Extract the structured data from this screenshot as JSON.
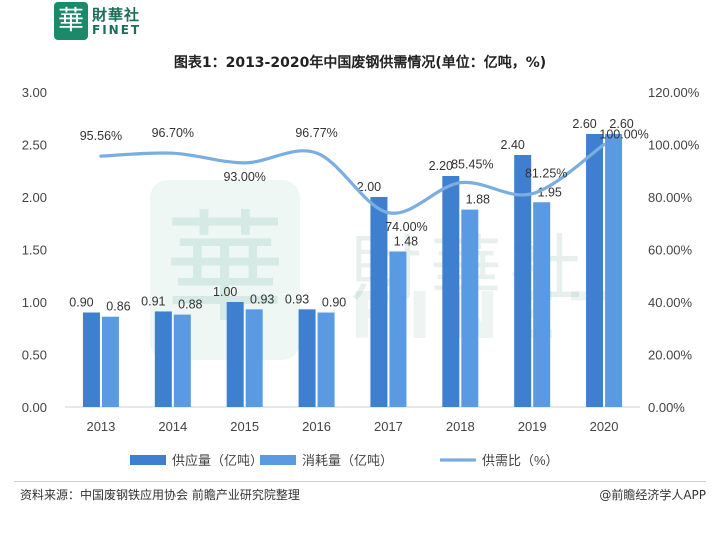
{
  "brand": {
    "seal_char": "華",
    "name_cn": "財華社",
    "name_en": "FINET"
  },
  "watermark": {
    "seal_char": "華",
    "name_cn": "財華社",
    "name_en": "FINET"
  },
  "chart_data": {
    "type": "bar",
    "title": "图表1：2013-2020年中国废钢供需情况(单位：亿吨，%)",
    "categories": [
      "2013",
      "2014",
      "2015",
      "2016",
      "2017",
      "2018",
      "2019",
      "2020"
    ],
    "series": [
      {
        "name": "供应量（亿吨）",
        "type": "bar",
        "axis": "left",
        "color": "#3f7fd0",
        "values": [
          0.9,
          0.91,
          1.0,
          0.93,
          2.0,
          2.2,
          2.4,
          2.6
        ],
        "labels": [
          "0.90",
          "0.91",
          "1.00",
          "0.93",
          "2.00",
          "2.20",
          "2.40",
          "2.60"
        ]
      },
      {
        "name": "消耗量（亿吨）",
        "type": "bar",
        "axis": "left",
        "color": "#5a9ae3",
        "values": [
          0.86,
          0.88,
          0.93,
          0.9,
          1.48,
          1.88,
          1.95,
          2.6
        ],
        "labels": [
          "0.86",
          "0.88",
          "0.93",
          "0.90",
          "1.48",
          "1.88",
          "1.95",
          "2.60"
        ]
      },
      {
        "name": "供需比（%）",
        "type": "line",
        "axis": "right",
        "color": "#7aaee0",
        "values": [
          95.56,
          96.7,
          93.0,
          96.77,
          74.0,
          85.45,
          81.25,
          100.0
        ],
        "labels": [
          "95.56%",
          "96.70%",
          "93.00%",
          "96.77%",
          "74.00%",
          "85.45%",
          "81.25%",
          "100.00%"
        ]
      }
    ],
    "y_left": {
      "min": 0,
      "max": 3,
      "ticks": [
        "0.00",
        "0.50",
        "1.00",
        "1.50",
        "2.00",
        "2.50",
        "3.00"
      ]
    },
    "y_right": {
      "min": 0,
      "max": 120,
      "ticks": [
        "0.00%",
        "20.00%",
        "40.00%",
        "60.00%",
        "80.00%",
        "100.00%",
        "120.00%"
      ]
    },
    "grid": false,
    "legend_position": "bottom"
  },
  "footer": {
    "source": "资料来源：中国废钢铁应用协会 前瞻产业研究院整理",
    "credit": "@前瞻经济学人APP"
  }
}
